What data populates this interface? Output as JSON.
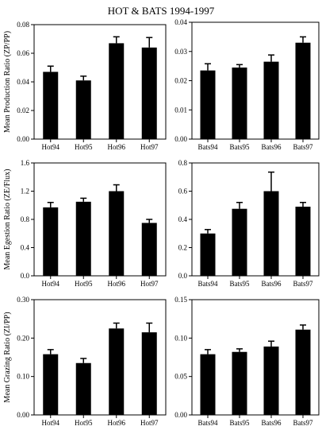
{
  "figure_title": "HOT & BATS 1994-1997",
  "colors": {
    "bar": "#000000",
    "axis": "#000000",
    "background": "#ffffff"
  },
  "chart_data": [
    {
      "type": "bar",
      "ylabel": "Mean Production Ratio (ZP/PP)",
      "categories": [
        "Hot94",
        "Hot95",
        "Hot96",
        "Hot97"
      ],
      "values": [
        0.047,
        0.041,
        0.067,
        0.064
      ],
      "errors": [
        0.004,
        0.003,
        0.0045,
        0.007
      ],
      "ylim": [
        0,
        0.08
      ],
      "yticks": [
        "0.00",
        "0.02",
        "0.04",
        "0.06",
        "0.08"
      ],
      "tick_values": [
        0,
        0.02,
        0.04,
        0.06,
        0.08
      ]
    },
    {
      "type": "bar",
      "ylabel": "",
      "categories": [
        "Bats94",
        "Bats95",
        "Bats96",
        "Bats97"
      ],
      "values": [
        0.0235,
        0.0245,
        0.0265,
        0.033
      ],
      "errors": [
        0.0023,
        0.001,
        0.0023,
        0.002
      ],
      "ylim": [
        0,
        0.04
      ],
      "yticks": [
        "0.00",
        "0.01",
        "0.02",
        "0.03",
        "0.04"
      ],
      "tick_values": [
        0,
        0.01,
        0.02,
        0.03,
        0.04
      ]
    },
    {
      "type": "bar",
      "ylabel": "Mean Egestion Ratio (ZE/Flux)",
      "categories": [
        "Hot94",
        "Hot95",
        "Hot96",
        "Hot97"
      ],
      "values": [
        0.97,
        1.05,
        1.2,
        0.75
      ],
      "errors": [
        0.07,
        0.05,
        0.09,
        0.05
      ],
      "ylim": [
        0,
        1.6
      ],
      "yticks": [
        "0.0",
        "0.4",
        "0.8",
        "1.2",
        "1.6"
      ],
      "tick_values": [
        0,
        0.4,
        0.8,
        1.2,
        1.6
      ]
    },
    {
      "type": "bar",
      "ylabel": "",
      "categories": [
        "Bats94",
        "Bats95",
        "Bats96",
        "Bats97"
      ],
      "values": [
        0.3,
        0.475,
        0.6,
        0.49
      ],
      "errors": [
        0.028,
        0.045,
        0.135,
        0.03
      ],
      "ylim": [
        0,
        0.8
      ],
      "yticks": [
        "0.0",
        "0.2",
        "0.4",
        "0.6",
        "0.8"
      ],
      "tick_values": [
        0,
        0.2,
        0.4,
        0.6,
        0.8
      ]
    },
    {
      "type": "bar",
      "ylabel": "Mean Grazing Ratio (ZI/PP)",
      "categories": [
        "Hot94",
        "Hot95",
        "Hot96",
        "Hot97"
      ],
      "values": [
        0.158,
        0.135,
        0.225,
        0.215
      ],
      "errors": [
        0.012,
        0.012,
        0.014,
        0.024
      ],
      "ylim": [
        0,
        0.3
      ],
      "yticks": [
        "0.00",
        "0.10",
        "0.20",
        "0.30"
      ],
      "tick_values": [
        0,
        0.1,
        0.2,
        0.3
      ]
    },
    {
      "type": "bar",
      "ylabel": "",
      "categories": [
        "Bats94",
        "Bats95",
        "Bats96",
        "Bats97"
      ],
      "values": [
        0.079,
        0.082,
        0.089,
        0.111
      ],
      "errors": [
        0.006,
        0.004,
        0.007,
        0.006
      ],
      "ylim": [
        0,
        0.15
      ],
      "yticks": [
        "0.00",
        "0.05",
        "0.10",
        "0.15"
      ],
      "tick_values": [
        0,
        0.05,
        0.1,
        0.15
      ]
    }
  ]
}
